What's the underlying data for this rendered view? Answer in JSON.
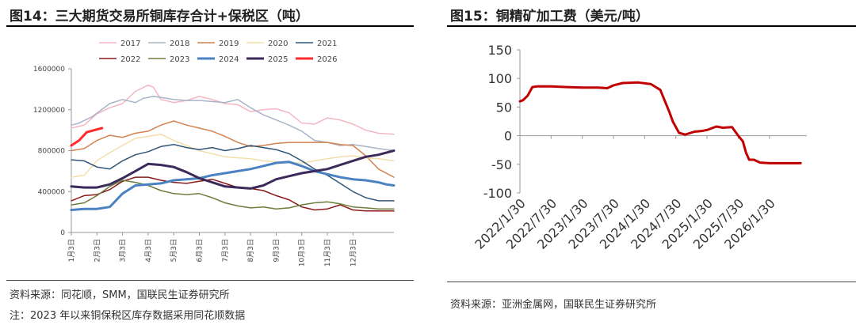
{
  "left": {
    "title": "图14：三大期货交易所铜库存合计+保税区（吨）",
    "source": "资料来源：同花顺，SMM，国联民生证券研究所",
    "note": "注：2023 年以来铜保税区库存数据采用同花顺数据"
  },
  "right": {
    "title": "图15：铜精矿加工费（美元/吨）",
    "source": "资料来源：亚洲金属网，国联民生证券研究所"
  },
  "chart_data": [
    {
      "type": "line",
      "title": "三大期货交易所铜库存合计+保税区（吨）",
      "x_ticks": [
        "1月3日",
        "2月3日",
        "3月3日",
        "4月3日",
        "5月3日",
        "6月3日",
        "7月3日",
        "8月3日",
        "9月3日",
        "10月3日",
        "11月3日",
        "12月3日"
      ],
      "ylim": [
        0,
        1600000
      ],
      "y_ticks": [
        0,
        400000,
        800000,
        1200000,
        1600000
      ],
      "y_tick_labels": [
        "0",
        "400000",
        "800000",
        "1200000",
        "1600000"
      ],
      "legend_position": "top",
      "series": [
        {
          "name": "2017",
          "color": "#f4b6c2",
          "width": 1.5,
          "x": [
            0,
            0.5,
            1,
            1.5,
            2,
            2.5,
            3,
            3.2,
            3.5,
            4,
            4.5,
            5,
            5.5,
            6,
            6.5,
            7,
            7.5,
            8,
            8.5,
            9,
            9.5,
            10,
            10.5,
            11,
            11.5,
            12,
            12.6
          ],
          "y": [
            1020000,
            1050000,
            1160000,
            1220000,
            1260000,
            1380000,
            1440000,
            1420000,
            1300000,
            1270000,
            1290000,
            1330000,
            1300000,
            1260000,
            1250000,
            1180000,
            1200000,
            1210000,
            1170000,
            1070000,
            1060000,
            1120000,
            1100000,
            1060000,
            1000000,
            970000,
            960000
          ]
        },
        {
          "name": "2018",
          "color": "#aab4c8",
          "width": 1.5,
          "x": [
            0,
            0.3,
            0.8,
            1.5,
            2,
            2.5,
            2.8,
            3.2,
            3.5,
            4,
            4.5,
            5,
            5.5,
            6,
            6.5,
            7,
            7.5,
            8,
            8.5,
            9,
            9.5,
            10,
            10.5,
            11,
            11.5,
            12,
            12.6
          ],
          "y": [
            1050000,
            1070000,
            1130000,
            1260000,
            1300000,
            1270000,
            1310000,
            1330000,
            1320000,
            1300000,
            1290000,
            1290000,
            1280000,
            1270000,
            1300000,
            1220000,
            1150000,
            1100000,
            1050000,
            990000,
            900000,
            880000,
            850000,
            860000,
            840000,
            820000,
            800000
          ]
        },
        {
          "name": "2019",
          "color": "#d4824f",
          "width": 1.5,
          "x": [
            0,
            0.5,
            1,
            1.5,
            2,
            2.5,
            3,
            3.5,
            4,
            4.5,
            5,
            5.5,
            6,
            6.5,
            7,
            7.5,
            8,
            8.5,
            9,
            9.5,
            10,
            10.5,
            11,
            11.5,
            12,
            12.6
          ],
          "y": [
            800000,
            820000,
            900000,
            950000,
            930000,
            970000,
            990000,
            1050000,
            1090000,
            1050000,
            1020000,
            990000,
            940000,
            880000,
            840000,
            850000,
            870000,
            880000,
            880000,
            880000,
            880000,
            860000,
            850000,
            750000,
            620000,
            540000
          ]
        },
        {
          "name": "2020",
          "color": "#f2dfaa",
          "width": 1.5,
          "x": [
            0,
            0.5,
            1,
            1.5,
            2,
            2.5,
            3,
            3.5,
            4,
            4.5,
            5,
            5.5,
            6,
            6.5,
            7,
            7.5,
            8,
            8.5,
            9,
            9.5,
            10,
            10.5,
            11,
            11.5,
            12,
            12.6
          ],
          "y": [
            540000,
            560000,
            700000,
            780000,
            850000,
            920000,
            940000,
            960000,
            900000,
            850000,
            800000,
            770000,
            740000,
            730000,
            720000,
            700000,
            690000,
            680000,
            680000,
            700000,
            720000,
            740000,
            750000,
            730000,
            720000,
            700000
          ]
        },
        {
          "name": "2021",
          "color": "#2f5578",
          "width": 1.5,
          "x": [
            0,
            0.5,
            1,
            1.5,
            2,
            2.5,
            3,
            3.5,
            4,
            4.5,
            5,
            5.5,
            6,
            6.5,
            7,
            7.5,
            8,
            8.5,
            9,
            9.5,
            10,
            10.5,
            11,
            11.5,
            12,
            12.6
          ],
          "y": [
            710000,
            700000,
            640000,
            620000,
            700000,
            760000,
            790000,
            840000,
            860000,
            830000,
            810000,
            830000,
            800000,
            820000,
            850000,
            830000,
            810000,
            770000,
            700000,
            620000,
            560000,
            480000,
            400000,
            340000,
            310000,
            310000
          ]
        },
        {
          "name": "2022",
          "color": "#8b1a1a",
          "width": 1.5,
          "x": [
            0,
            0.5,
            1,
            1.5,
            2,
            2.5,
            3,
            3.5,
            4,
            4.5,
            5,
            5.5,
            6,
            6.5,
            7,
            7.5,
            8,
            8.5,
            9,
            9.5,
            10,
            10.5,
            11,
            11.5,
            12,
            12.6
          ],
          "y": [
            310000,
            360000,
            370000,
            420000,
            500000,
            540000,
            540000,
            510000,
            490000,
            480000,
            500000,
            520000,
            480000,
            440000,
            430000,
            410000,
            360000,
            320000,
            250000,
            220000,
            230000,
            270000,
            220000,
            210000,
            210000,
            210000
          ]
        },
        {
          "name": "2023",
          "color": "#6c7e3a",
          "width": 1.5,
          "x": [
            0,
            0.5,
            1,
            1.5,
            2,
            2.5,
            3,
            3.5,
            4,
            4.5,
            5,
            5.5,
            6,
            6.5,
            7,
            7.5,
            8,
            8.5,
            9,
            9.5,
            10,
            10.5,
            11,
            11.5,
            12,
            12.6
          ],
          "y": [
            270000,
            290000,
            360000,
            450000,
            510000,
            490000,
            460000,
            410000,
            380000,
            370000,
            380000,
            340000,
            290000,
            260000,
            240000,
            250000,
            230000,
            240000,
            270000,
            290000,
            300000,
            280000,
            250000,
            240000,
            230000,
            230000
          ]
        },
        {
          "name": "2024",
          "color": "#4a82c2",
          "width": 3,
          "x": [
            0,
            0.5,
            1,
            1.5,
            2,
            2.5,
            3,
            3.5,
            4,
            4.5,
            5,
            5.5,
            6,
            6.5,
            7,
            7.5,
            8,
            8.5,
            9,
            9.5,
            10,
            10.5,
            11,
            11.5,
            12,
            12.3,
            12.6
          ],
          "y": [
            220000,
            230000,
            230000,
            250000,
            380000,
            460000,
            470000,
            480000,
            510000,
            520000,
            530000,
            560000,
            580000,
            600000,
            620000,
            650000,
            680000,
            690000,
            650000,
            600000,
            570000,
            540000,
            520000,
            510000,
            490000,
            470000,
            460000
          ]
        },
        {
          "name": "2025",
          "color": "#3b2a5a",
          "width": 3,
          "x": [
            0,
            0.5,
            1,
            1.5,
            2,
            2.5,
            3,
            3.5,
            4,
            4.5,
            5,
            5.5,
            6,
            6.5,
            7,
            7.5,
            8,
            8.5,
            9,
            9.5,
            10,
            10.5,
            11,
            11.5,
            12,
            12.6
          ],
          "y": [
            450000,
            440000,
            440000,
            470000,
            530000,
            600000,
            670000,
            660000,
            640000,
            590000,
            530000,
            490000,
            450000,
            440000,
            430000,
            460000,
            520000,
            550000,
            580000,
            600000,
            620000,
            660000,
            700000,
            740000,
            760000,
            800000
          ]
        },
        {
          "name": "2026",
          "color": "#ff2a2a",
          "width": 3,
          "x": [
            0,
            0.3,
            0.6,
            0.9,
            1.2
          ],
          "y": [
            850000,
            900000,
            980000,
            1000000,
            1020000
          ]
        }
      ]
    },
    {
      "type": "line",
      "title": "铜精矿加工费（美元/吨）",
      "x_tick_labels": [
        "2022/1/30",
        "2022/7/30",
        "2023/1/30",
        "2023/7/30",
        "2024/1/30",
        "2024/7/30",
        "2025/1/30",
        "2025/7/30",
        "2026/1/30"
      ],
      "ylim": [
        -100,
        150
      ],
      "y_ticks": [
        -100,
        -50,
        0,
        50,
        100,
        150
      ],
      "y_tick_labels": [
        "-100",
        "-50",
        "0",
        "50",
        "100",
        "150"
      ],
      "series": [
        {
          "name": "铜精矿加工费",
          "color": "#c00000",
          "width": 3,
          "x": [
            0,
            0.1,
            0.25,
            0.4,
            0.55,
            0.7,
            1,
            1.5,
            2,
            2.5,
            2.8,
            3,
            3.3,
            3.8,
            4.2,
            4.5,
            4.8,
            4.9,
            5.1,
            5.3,
            5.6,
            5.8,
            6,
            6.3,
            6.5,
            6.8,
            7,
            7.15,
            7.25,
            7.35,
            7.5,
            7.7,
            8,
            8.3,
            8.6,
            8.9,
            9
          ],
          "y": [
            60,
            62,
            70,
            85,
            86,
            86,
            86,
            85,
            84,
            84,
            83,
            88,
            92,
            93,
            90,
            80,
            40,
            25,
            5,
            2,
            7,
            8,
            10,
            16,
            14,
            15,
            0,
            -10,
            -30,
            -42,
            -42,
            -47,
            -48,
            -48,
            -48,
            -48,
            -48
          ]
        }
      ]
    }
  ]
}
